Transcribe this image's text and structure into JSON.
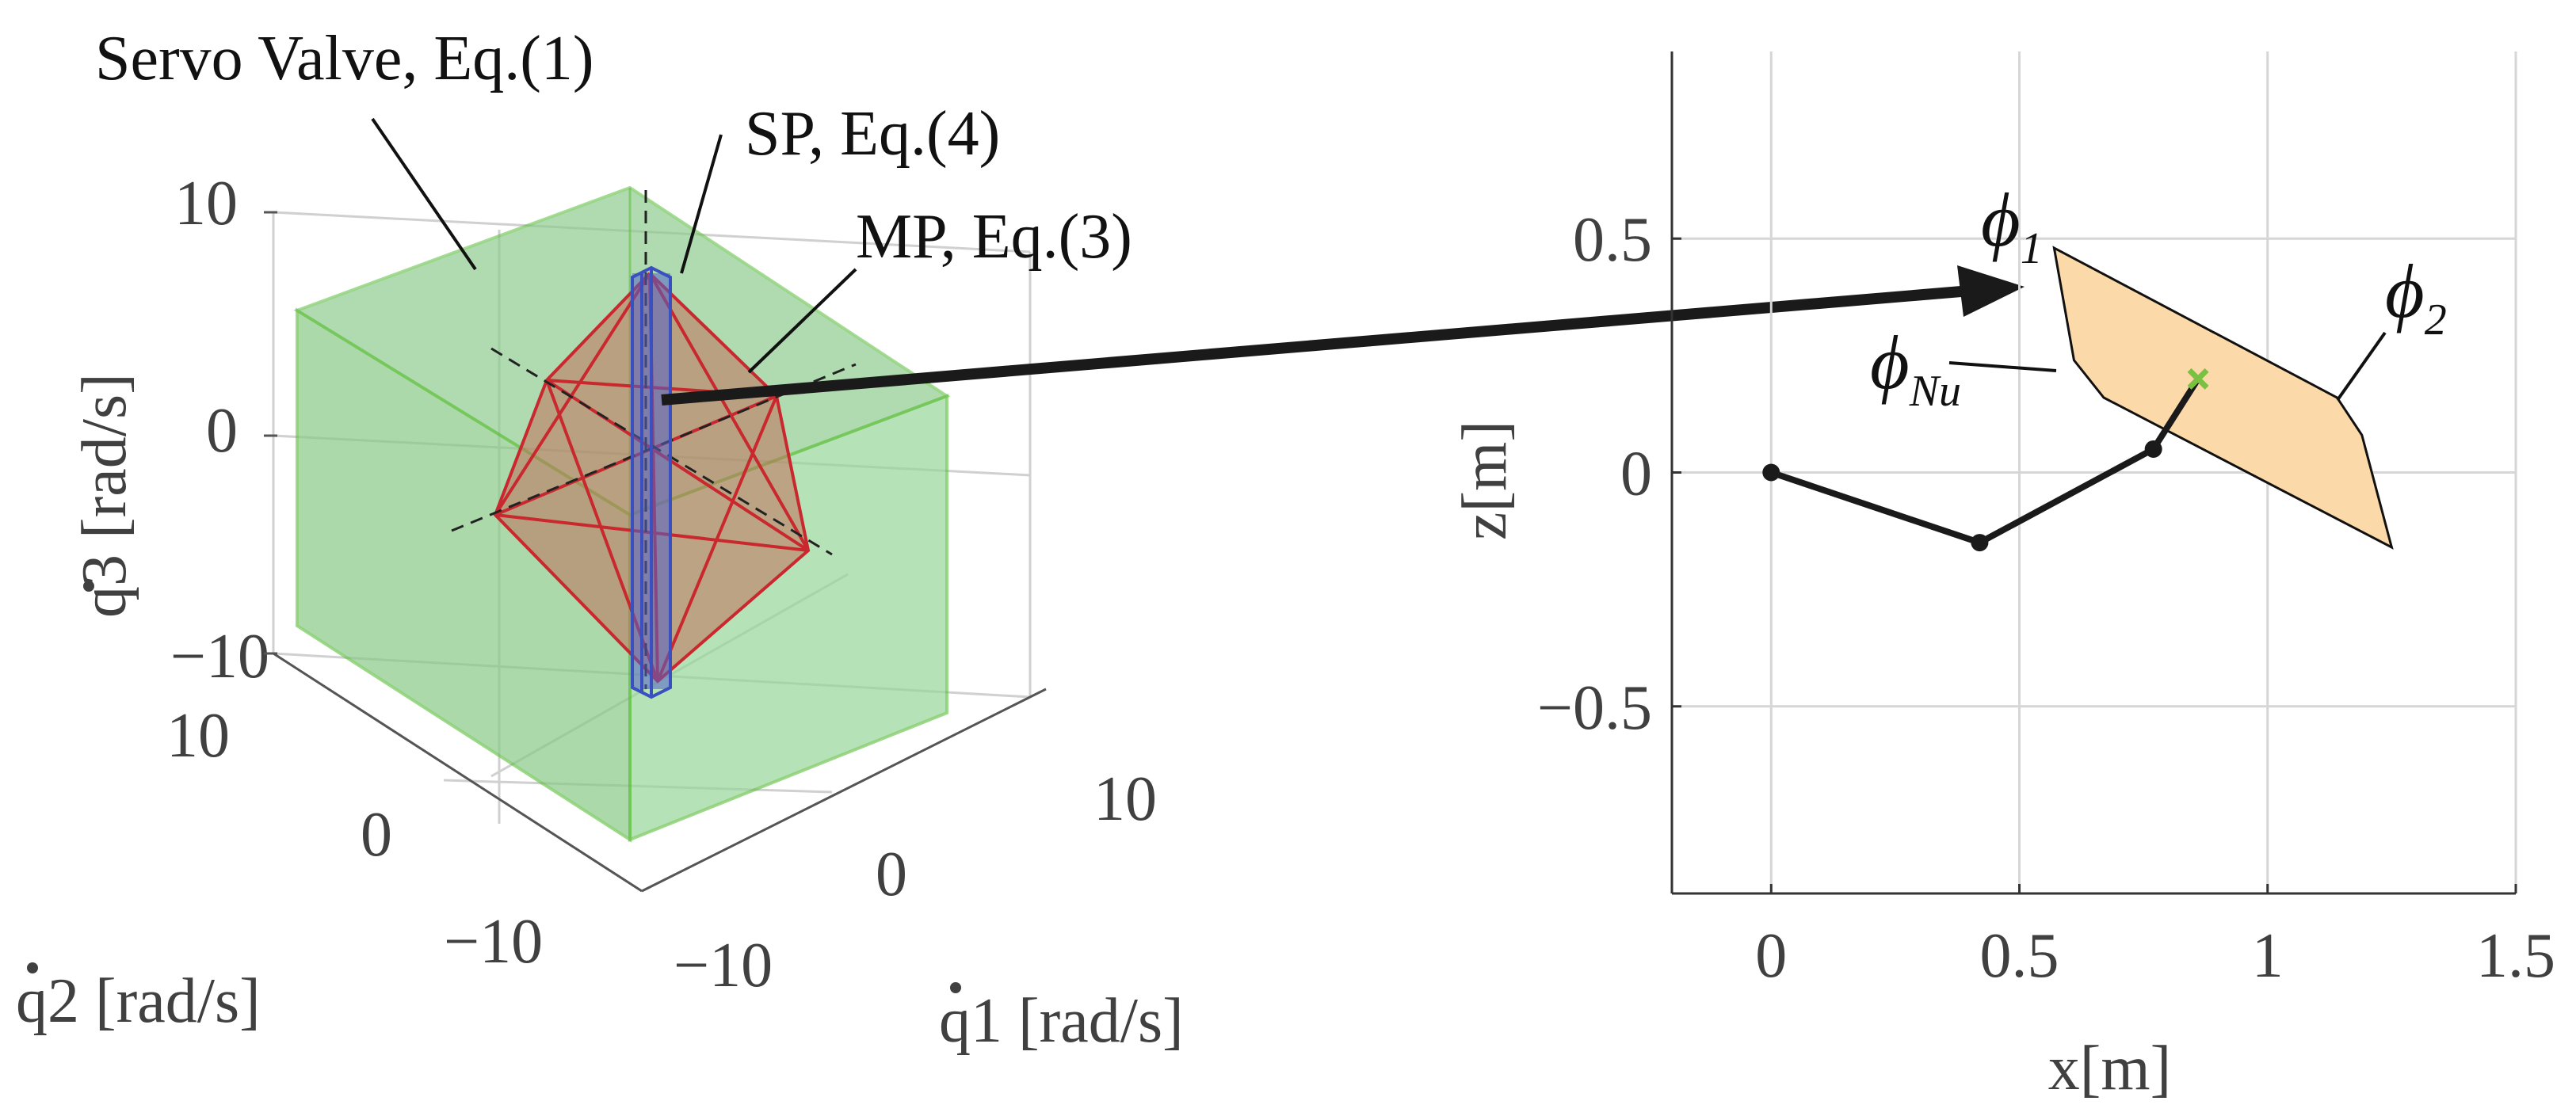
{
  "chart_data": [
    {
      "type": "3d-polytope",
      "xlabel": "q1 [rad/s]",
      "ylabel": "q2 [rad/s]",
      "zlabel": "q3 [rad/s]",
      "xlim": [
        -10,
        10
      ],
      "ylim": [
        -10,
        10
      ],
      "zlim": [
        -10,
        10
      ],
      "x_ticks": [
        "10",
        "0",
        "−10"
      ],
      "y_ticks": [
        "10",
        "0",
        "−10"
      ],
      "z_ticks": [
        "10",
        "0",
        "−10"
      ],
      "grid": true,
      "annotations": {
        "servo": "Servo Valve, Eq.(1)",
        "sp": "SP, Eq.(4)",
        "mp": "MP, Eq.(3)"
      },
      "colors": {
        "servo_box": "#7fc97f",
        "servo_edge": "#5fbf3f",
        "mp": "#c8282e",
        "sp": "#3a4fc0"
      }
    },
    {
      "type": "line",
      "xlabel": "x[m]",
      "ylabel": "z[m]",
      "xlim": [
        -0.2,
        1.5
      ],
      "ylim": [
        -0.9,
        0.9
      ],
      "x_ticks": [
        "0",
        "0.5",
        "1",
        "1.5"
      ],
      "y_ticks": [
        "0.5",
        "0",
        "−0.5"
      ],
      "grid": true,
      "series": [
        {
          "x": [
            0,
            0.42,
            0.77,
            0.86
          ],
          "y": [
            0,
            -0.15,
            0.05,
            0.2
          ]
        }
      ],
      "end_effector": {
        "x": 0.86,
        "y": 0.2
      },
      "region": {
        "x": [
          0.57,
          1.14,
          1.19,
          1.25,
          0.67,
          0.61
        ],
        "y": [
          0.48,
          0.16,
          0.08,
          -0.16,
          0.16,
          0.24
        ]
      },
      "labels": {
        "phi1": {
          "base": "ϕ",
          "sub": "1"
        },
        "phi2": {
          "base": "ϕ",
          "sub": "2"
        },
        "phiN": {
          "base": "ϕ",
          "sub": "Nu"
        }
      },
      "colors": {
        "region_fill": "#fcd9a8",
        "arm": "#1a1a1a",
        "marker": "#7ac143"
      }
    }
  ]
}
